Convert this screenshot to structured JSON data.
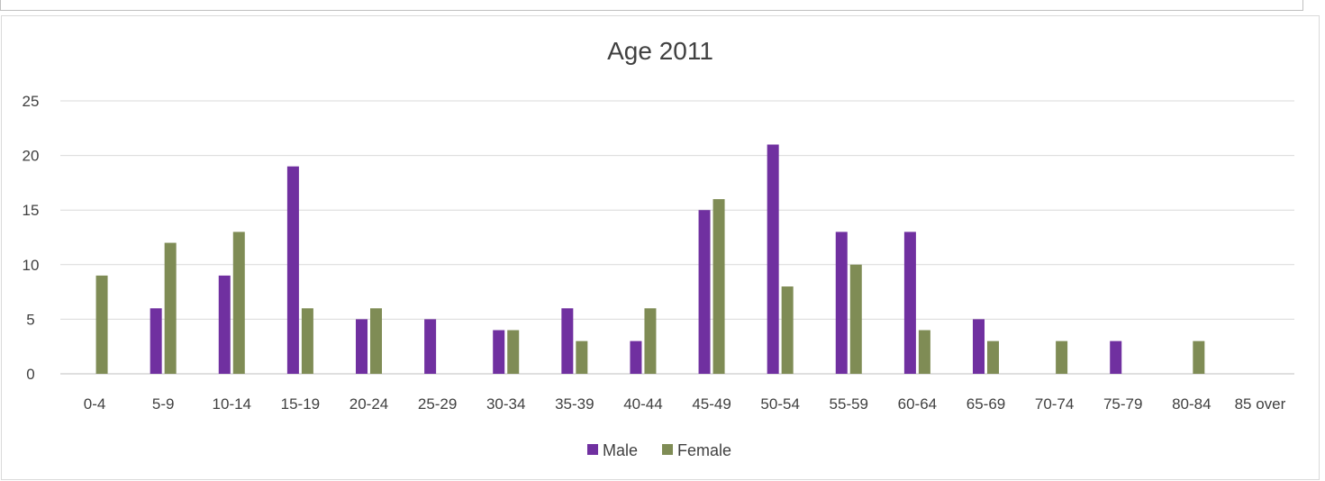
{
  "chart_data": {
    "type": "bar",
    "title": "Age 2011",
    "xlabel": "",
    "ylabel": "",
    "ylim": [
      0,
      25
    ],
    "yticks": [
      0,
      5,
      10,
      15,
      20,
      25
    ],
    "grid": true,
    "legend_position": "bottom",
    "categories": [
      "0-4",
      "5-9",
      "10-14",
      "15-19",
      "20-24",
      "25-29",
      "30-34",
      "35-39",
      "40-44",
      "45-49",
      "50-54",
      "55-59",
      "60-64",
      "65-69",
      "70-74",
      "75-79",
      "80-84",
      "85 over"
    ],
    "series": [
      {
        "name": "Male",
        "color": "#7030a0",
        "values": [
          0,
          6,
          9,
          19,
          5,
          5,
          4,
          6,
          3,
          15,
          21,
          13,
          13,
          5,
          0,
          3,
          0,
          0
        ]
      },
      {
        "name": "Female",
        "color": "#7f8c55",
        "values": [
          9,
          12,
          13,
          6,
          6,
          0,
          4,
          3,
          6,
          16,
          8,
          10,
          4,
          3,
          3,
          0,
          3,
          0
        ]
      }
    ]
  }
}
